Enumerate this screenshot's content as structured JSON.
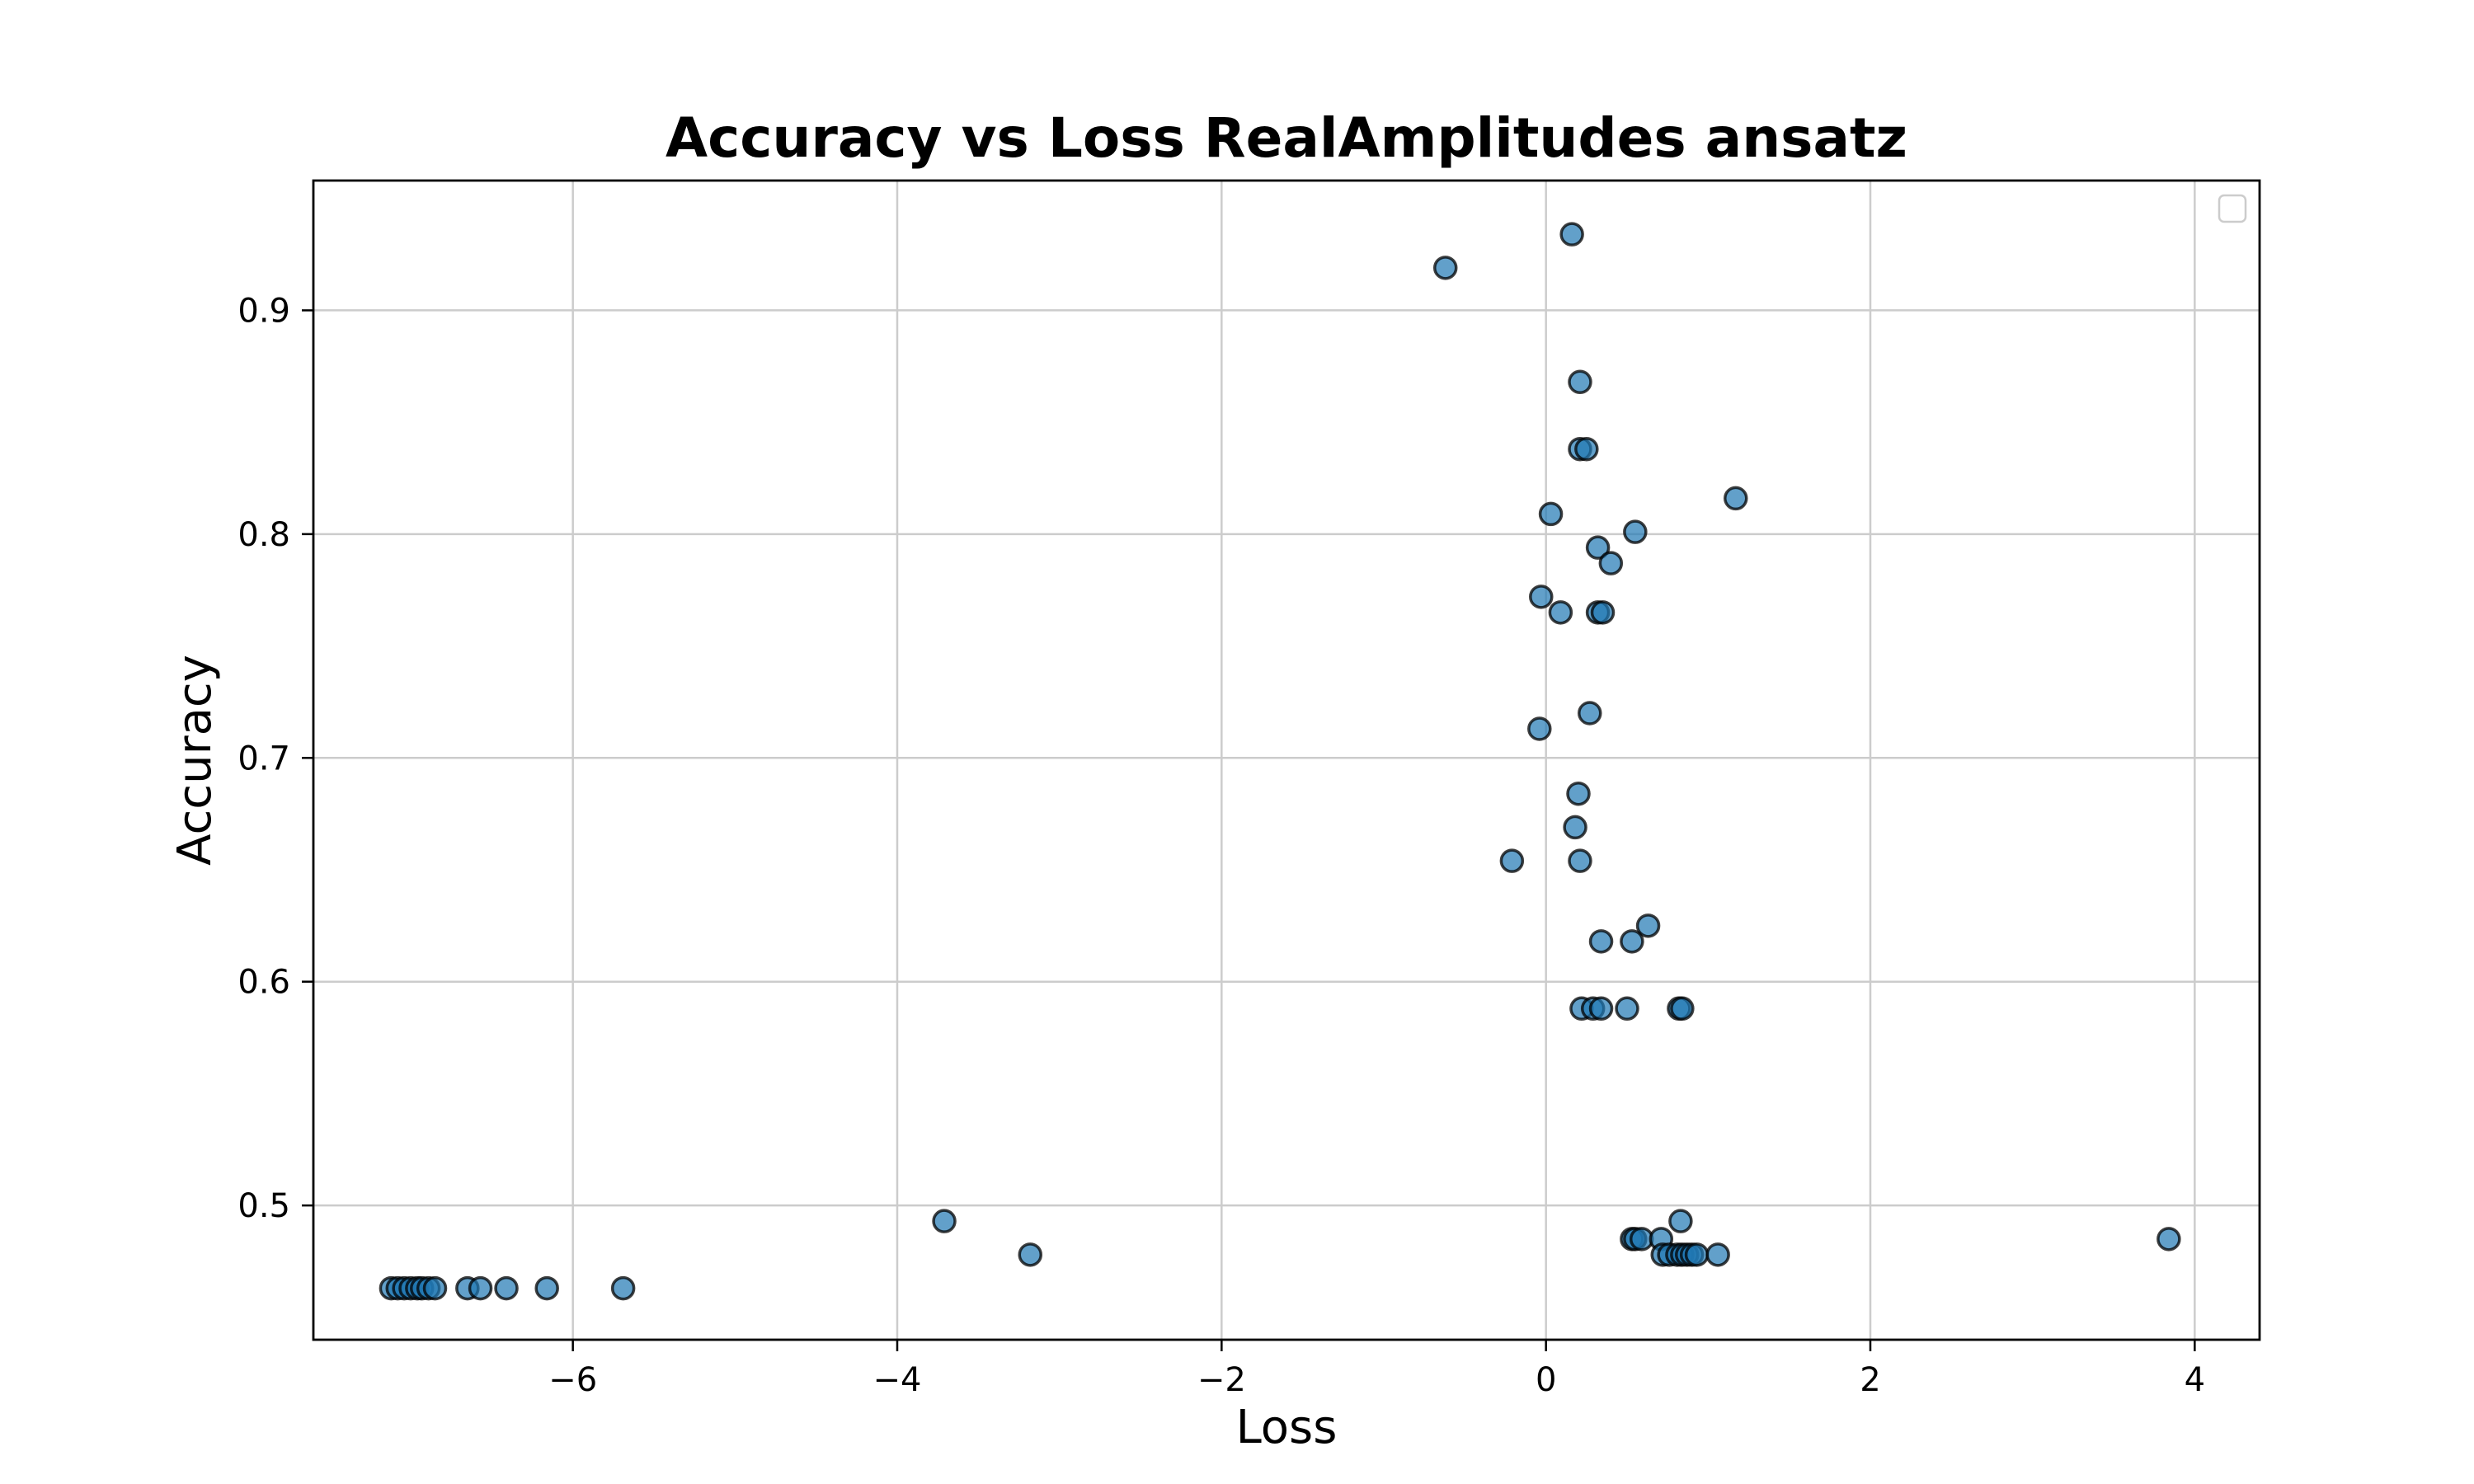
{
  "chart_data": {
    "type": "scatter",
    "title": "Accuracy vs Loss RealAmplitudes ansatz",
    "xlabel": "Loss",
    "ylabel": "Accuracy",
    "xlim": [
      -7.6,
      4.4
    ],
    "ylim": [
      0.44,
      0.958
    ],
    "xticks": [
      -6,
      -4,
      -2,
      0,
      2,
      4
    ],
    "xtick_labels": [
      "−6",
      "−4",
      "−2",
      "0",
      "2",
      "4"
    ],
    "yticks": [
      0.5,
      0.6,
      0.7,
      0.8,
      0.9
    ],
    "ytick_labels": [
      "0.5",
      "0.6",
      "0.7",
      "0.8",
      "0.9"
    ],
    "grid": true,
    "legend": "top-right (empty)",
    "color": "#1f77b4",
    "series": [
      {
        "points": [
          [
            0.16,
            0.934
          ],
          [
            -0.62,
            0.919
          ],
          [
            0.21,
            0.868
          ],
          [
            0.21,
            0.838
          ],
          [
            0.25,
            0.838
          ],
          [
            1.17,
            0.816
          ],
          [
            0.03,
            0.809
          ],
          [
            0.55,
            0.801
          ],
          [
            0.32,
            0.794
          ],
          [
            0.4,
            0.787
          ],
          [
            -0.03,
            0.772
          ],
          [
            0.09,
            0.765
          ],
          [
            0.32,
            0.765
          ],
          [
            0.35,
            0.765
          ],
          [
            0.27,
            0.72
          ],
          [
            -0.04,
            0.713
          ],
          [
            0.2,
            0.684
          ],
          [
            0.18,
            0.669
          ],
          [
            -0.21,
            0.654
          ],
          [
            0.21,
            0.654
          ],
          [
            0.63,
            0.625
          ],
          [
            0.34,
            0.618
          ],
          [
            0.53,
            0.618
          ],
          [
            0.22,
            0.588
          ],
          [
            0.29,
            0.588
          ],
          [
            0.34,
            0.588
          ],
          [
            0.5,
            0.588
          ],
          [
            0.82,
            0.588
          ],
          [
            0.84,
            0.588
          ],
          [
            0.83,
            0.493
          ],
          [
            0.53,
            0.485
          ],
          [
            0.55,
            0.485
          ],
          [
            0.59,
            0.485
          ],
          [
            0.71,
            0.485
          ],
          [
            0.72,
            0.478
          ],
          [
            0.76,
            0.478
          ],
          [
            0.81,
            0.478
          ],
          [
            0.84,
            0.478
          ],
          [
            0.87,
            0.478
          ],
          [
            0.9,
            0.478
          ],
          [
            0.93,
            0.478
          ],
          [
            1.06,
            0.478
          ],
          [
            3.84,
            0.485
          ],
          [
            -3.71,
            0.493
          ],
          [
            -3.18,
            0.478
          ],
          [
            -7.12,
            0.463
          ],
          [
            -7.08,
            0.463
          ],
          [
            -7.04,
            0.463
          ],
          [
            -7.0,
            0.463
          ],
          [
            -6.96,
            0.463
          ],
          [
            -6.93,
            0.463
          ],
          [
            -6.89,
            0.463
          ],
          [
            -6.85,
            0.463
          ],
          [
            -6.65,
            0.463
          ],
          [
            -6.57,
            0.463
          ],
          [
            -6.41,
            0.463
          ],
          [
            -6.16,
            0.463
          ],
          [
            -5.69,
            0.463
          ]
        ]
      }
    ]
  }
}
